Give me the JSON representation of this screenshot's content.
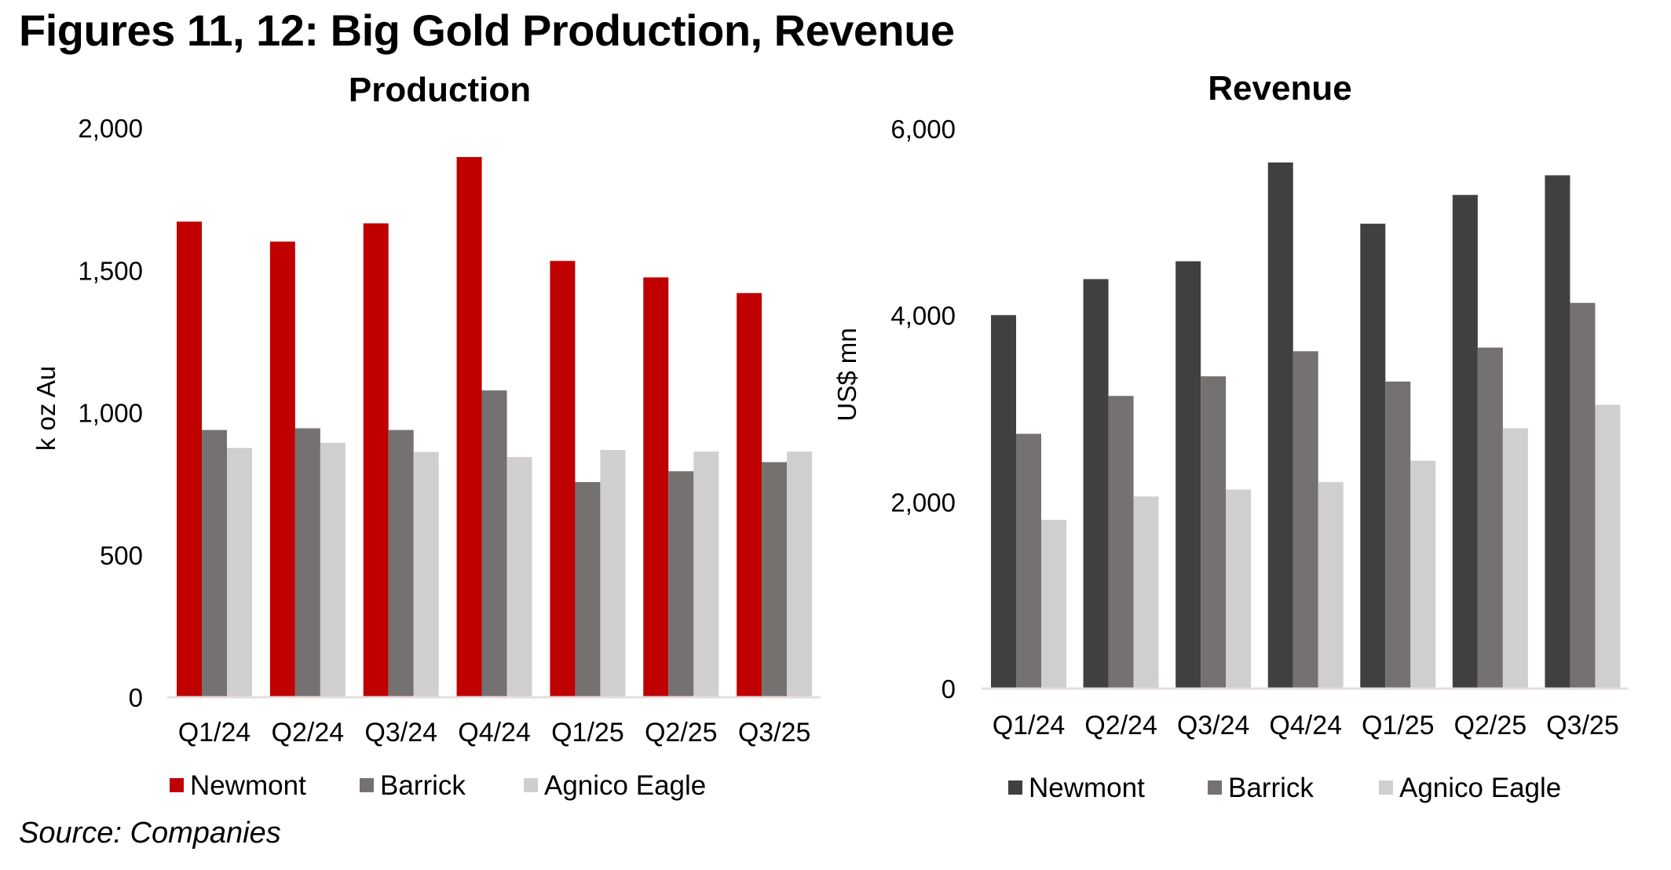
{
  "figure_title": "Figures 11, 12: Big Gold Production, Revenue",
  "source": "Source: Companies",
  "chart_data": [
    {
      "type": "bar",
      "title": "Production",
      "xlabel": "",
      "ylabel": "k oz Au",
      "ylim": [
        0,
        2000
      ],
      "yticks": [
        0,
        500,
        1000,
        1500,
        2000
      ],
      "ytick_labels": [
        "0",
        "500",
        "1,000",
        "1,500",
        "2,000"
      ],
      "grid": false,
      "legend_position": "bottom",
      "categories": [
        "Q1/24",
        "Q2/24",
        "Q3/24",
        "Q4/24",
        "Q1/25",
        "Q2/25",
        "Q3/25"
      ],
      "series": [
        {
          "name": "Newmont",
          "color": "#c00000",
          "values": [
            1671,
            1601,
            1665,
            1898,
            1533,
            1475,
            1420
          ]
        },
        {
          "name": "Barrick",
          "color": "#767171",
          "values": [
            939,
            945,
            939,
            1078,
            756,
            794,
            826
          ]
        },
        {
          "name": "Agnico Eagle",
          "color": "#d0cece",
          "values": [
            876,
            894,
            862,
            844,
            869,
            863,
            863
          ]
        }
      ]
    },
    {
      "type": "bar",
      "title": "Revenue",
      "xlabel": "",
      "ylabel": "US$ mn",
      "ylim": [
        0,
        6000
      ],
      "yticks": [
        0,
        2000,
        4000,
        6000
      ],
      "ytick_labels": [
        "0",
        "2,000",
        "4,000",
        "6,000"
      ],
      "grid": false,
      "legend_position": "bottom",
      "categories": [
        "Q1/24",
        "Q2/24",
        "Q3/24",
        "Q4/24",
        "Q1/25",
        "Q2/25",
        "Q3/25"
      ],
      "series": [
        {
          "name": "Newmont",
          "color": "#404040",
          "values": [
            4003,
            4389,
            4580,
            5639,
            4983,
            5291,
            5501
          ]
        },
        {
          "name": "Barrick",
          "color": "#767171",
          "values": [
            2731,
            3137,
            3347,
            3616,
            3291,
            3655,
            4134
          ]
        },
        {
          "name": "Agnico Eagle",
          "color": "#d0cece",
          "values": [
            1809,
            2059,
            2134,
            2213,
            2442,
            2790,
            3042
          ]
        }
      ]
    }
  ]
}
